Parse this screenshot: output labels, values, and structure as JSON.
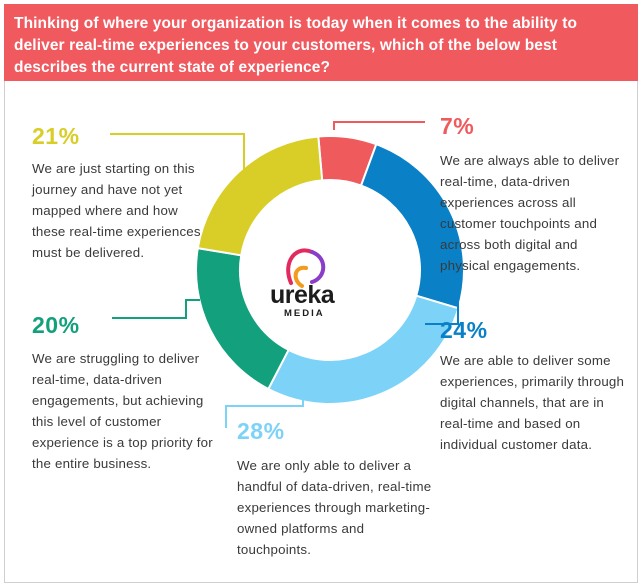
{
  "header": {
    "question": "Thinking of where your organization is today when it comes to the ability to deliver real-time experiences to your customers, which of the below best describes the current state of experience?",
    "background": "#f05a5f"
  },
  "logo": {
    "text": "ureka",
    "subtext": "MEDIA"
  },
  "chart_data": {
    "type": "pie",
    "style": "donut",
    "categories": [
      "We are always able to deliver real-time, data-driven experiences across all customer touchpoints and across both digital and physical engagements.",
      "We are able to deliver some experiences, primarily through digital channels, that are in real-time and based on individual customer data.",
      "We are only able to deliver a handful of data-driven, real-time experiences through marketing-owned platforms and touchpoints.",
      "We are struggling to deliver real-time, data-driven engagements, but achieving this level of customer experience is a top priority for the entire business.",
      "We are just starting on this journey and have not yet mapped where and how these real-time experiences must be delivered."
    ],
    "values": [
      7,
      24,
      28,
      20,
      21
    ],
    "labels": [
      "7%",
      "24%",
      "28%",
      "20%",
      "21%"
    ],
    "colors": [
      "#ef5a5c",
      "#0a80c6",
      "#7cd2f7",
      "#13a07c",
      "#d9cd27"
    ]
  }
}
